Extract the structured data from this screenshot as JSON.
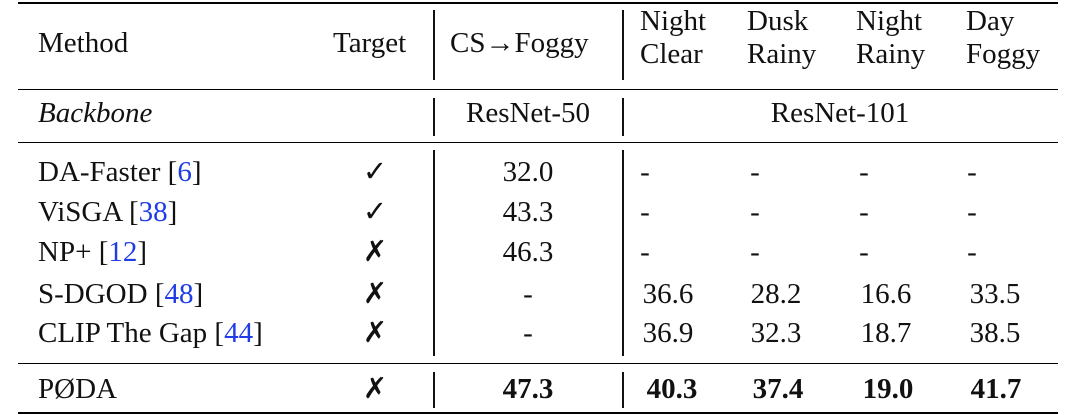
{
  "header": {
    "method": "Method",
    "target": "Target",
    "cs_foggy": "CS→Foggy",
    "night_clear": [
      "Night",
      "Clear"
    ],
    "dusk_rainy": [
      "Dusk",
      "Rainy"
    ],
    "night_rainy": [
      "Night",
      "Rainy"
    ],
    "day_foggy": [
      "Day",
      "Foggy"
    ]
  },
  "backbone_row": {
    "label": "Backbone",
    "cs_backbone": "ResNet-50",
    "other_backbone": "ResNet-101"
  },
  "rows": [
    {
      "name": "DA-Faster ",
      "cite": "6",
      "target": "✓",
      "cs": "32.0",
      "nc": "-",
      "dr": "-",
      "nr": "-",
      "df": "-"
    },
    {
      "name": "ViSGA ",
      "cite": "38",
      "target": "✓",
      "cs": "43.3",
      "nc": "-",
      "dr": "-",
      "nr": "-",
      "df": "-"
    },
    {
      "name": "NP+ ",
      "cite": "12",
      "target": "✗",
      "cs": "46.3",
      "nc": "-",
      "dr": "-",
      "nr": "-",
      "df": "-"
    },
    {
      "name": "S-DGOD ",
      "cite": "48",
      "target": "✗",
      "cs": "-",
      "nc": "36.6",
      "dr": "28.2",
      "nr": "16.6",
      "df": "33.5"
    },
    {
      "name": "CLIP The Gap ",
      "cite": "44",
      "target": "✗",
      "cs": "-",
      "nc": "36.9",
      "dr": "32.3",
      "nr": "18.7",
      "df": "38.5"
    }
  ],
  "ours": {
    "name": "PØDA",
    "target": "✗",
    "cs": "47.3",
    "nc": "40.3",
    "dr": "37.4",
    "nr": "19.0",
    "df": "41.7"
  },
  "colors": {
    "citation": "#1f3ce6",
    "text": "#111111",
    "rule": "#000000"
  }
}
